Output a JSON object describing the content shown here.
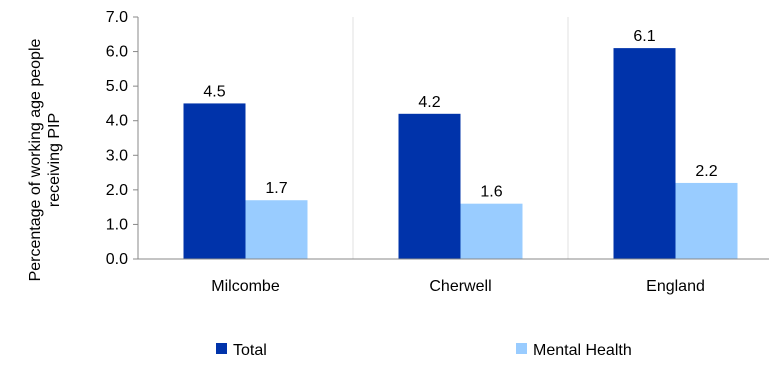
{
  "chart_data": {
    "type": "bar",
    "categories": [
      "Milcombe",
      "Cherwell",
      "England"
    ],
    "series": [
      {
        "name": "Total",
        "values": [
          4.5,
          4.2,
          6.1
        ],
        "color": "#0033aa"
      },
      {
        "name": "Mental Health",
        "values": [
          1.7,
          1.6,
          2.2
        ],
        "color": "#99ccff"
      }
    ],
    "ylabel": "Percentage of working age people receiving PIP",
    "ylabel_lines": [
      "Percentage of working age people",
      "receiving PIP"
    ],
    "ylim": [
      0,
      7
    ],
    "yticks": [
      0,
      1,
      2,
      3,
      4,
      5,
      6,
      7
    ],
    "ytick_labels": [
      "0.0",
      "1.0",
      "2.0",
      "3.0",
      "4.0",
      "5.0",
      "6.0",
      "7.0"
    ],
    "data_labels": [
      [
        "4.5",
        "4.2",
        "6.1"
      ],
      [
        "1.7",
        "1.6",
        "2.2"
      ]
    ],
    "grid": "vertical-category-separators",
    "legend_position": "bottom"
  }
}
